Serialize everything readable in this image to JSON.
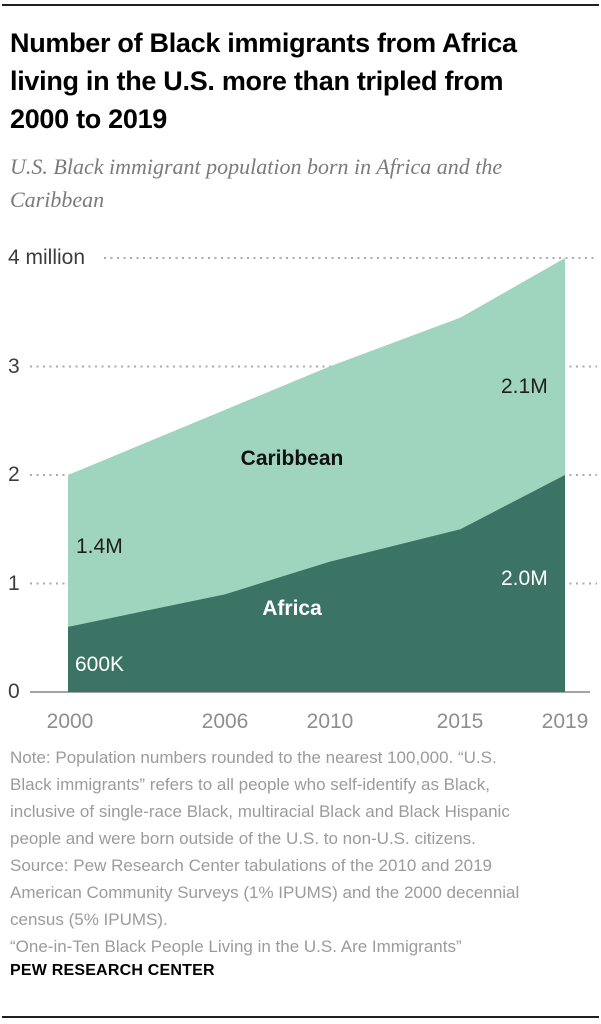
{
  "header": {
    "title": "Number of Black immigrants from Africa living in the U.S. more than tripled from 2000 to 2019",
    "title_lines": [
      "Number of Black immigrants from Africa",
      "living in the U.S. more than tripled from",
      "2000 to 2019"
    ],
    "subtitle": "U.S. Black immigrant population born in Africa and the Caribbean",
    "subtitle_lines": [
      "U.S. Black immigrant population born in Africa and the",
      "Caribbean"
    ]
  },
  "chart_data": {
    "type": "area",
    "stacked": true,
    "units": "millions of people",
    "x": [
      2000,
      2006,
      2010,
      2015,
      2019
    ],
    "series": [
      {
        "name": "Africa",
        "color": "#3b7365",
        "values": [
          0.6,
          0.9,
          1.2,
          1.5,
          2.0
        ],
        "value_labels": {
          "2000": "600K",
          "2019": "2.0M"
        }
      },
      {
        "name": "Caribbean",
        "color": "#9fd5be",
        "values": [
          1.4,
          1.7,
          1.8,
          1.95,
          2.1
        ],
        "value_labels": {
          "2000": "1.4M",
          "2019": "2.1M"
        }
      }
    ],
    "ylim": [
      0,
      4
    ],
    "yticks": [
      0,
      1,
      2,
      3,
      4
    ],
    "ytick_labels": [
      "0",
      "1",
      "2",
      "3",
      "4 million"
    ],
    "xtick_labels": [
      "2000",
      "2006",
      "2010",
      "2015",
      "2019"
    ],
    "gridlines": "dotted",
    "legend_position": "labels-inside-areas"
  },
  "chart_labels": {
    "caribbean_series": "Caribbean",
    "africa_series": "Africa",
    "caribbean_2000": "1.4M",
    "caribbean_2019": "2.1M",
    "africa_2000": "600K",
    "africa_2019": "2.0M"
  },
  "footer": {
    "lines": [
      "Note: Population numbers rounded to the nearest 100,000. “U.S.",
      "Black immigrants” refers to all people who self-identify as Black,",
      "inclusive of single-race Black, multiracial Black and Black Hispanic",
      "people and were born outside of the U.S. to non-U.S. citizens.",
      "Source: Pew Research Center tabulations of the 2010 and 2019",
      "American Community Surveys (1% IPUMS) and the 2000 decennial",
      "census (5% IPUMS).",
      "“One-in-Ten Black People Living in the U.S. Are Immigrants”"
    ],
    "brand": "PEW RESEARCH CENTER"
  }
}
